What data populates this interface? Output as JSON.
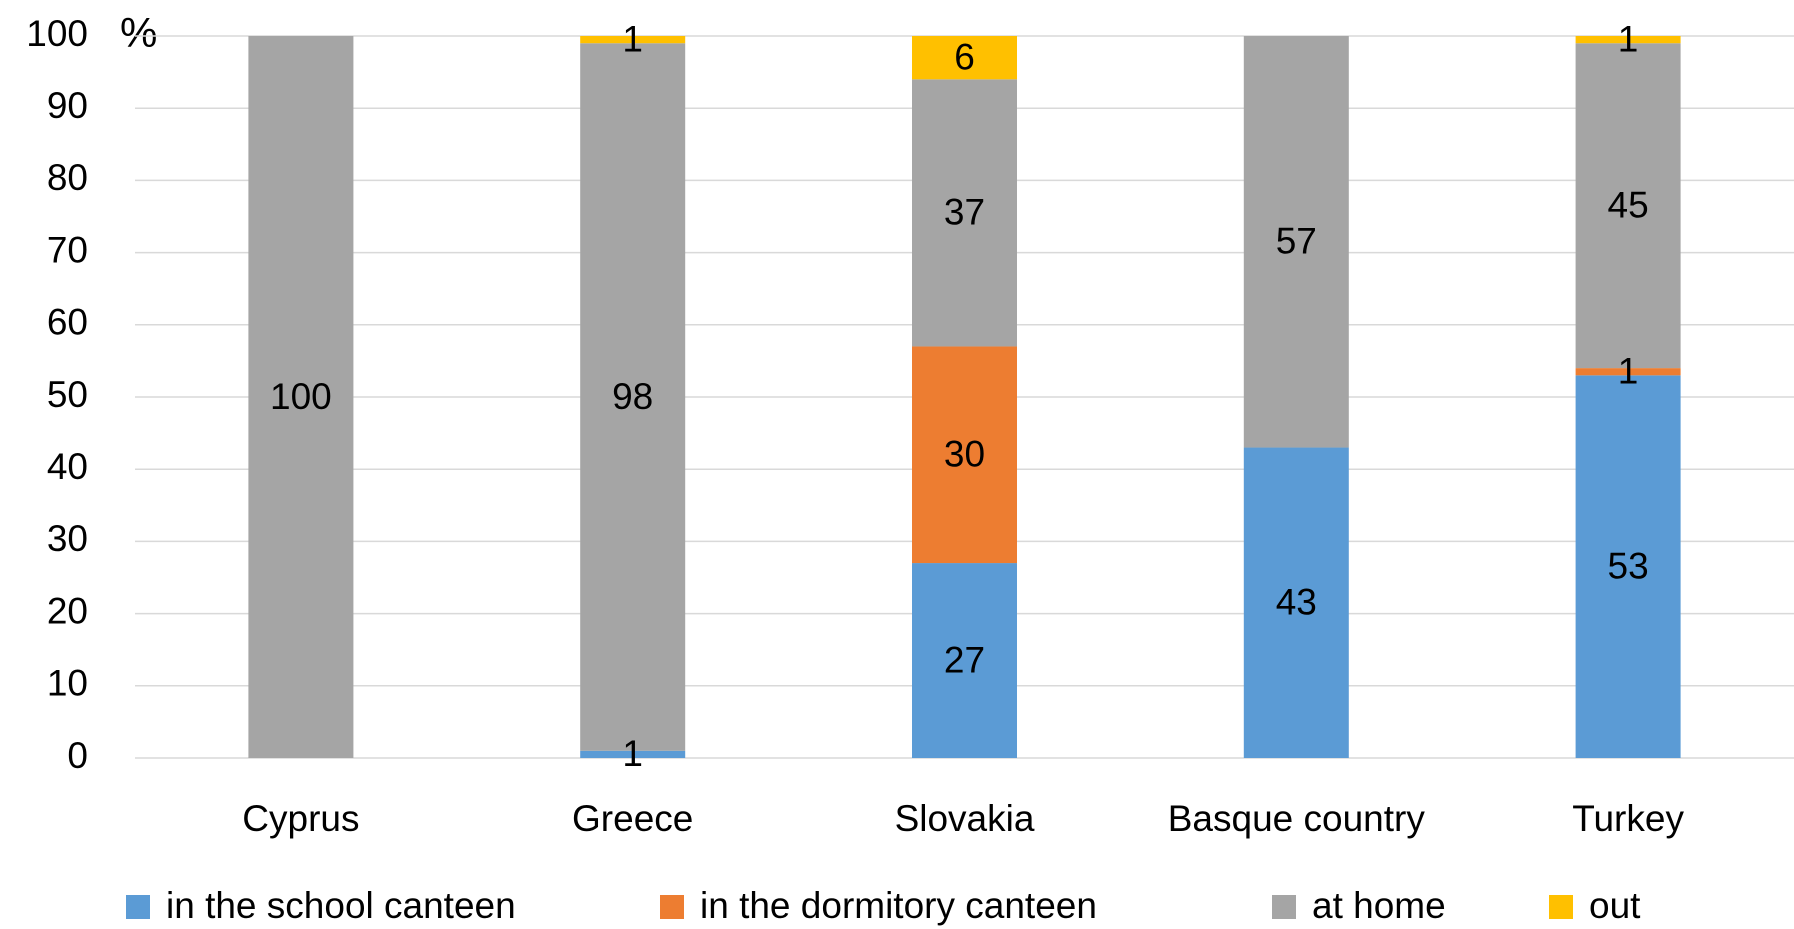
{
  "chart_data": {
    "type": "stacked_bar",
    "y_label": "%",
    "categories": [
      "Cyprus",
      "Greece",
      "Slovakia",
      "Basque country",
      "Turkey"
    ],
    "series": [
      {
        "name": "in the school canteen",
        "color": "#5b9bd5",
        "values": [
          0,
          1,
          27,
          43,
          53
        ]
      },
      {
        "name": "in the dormitory canteen",
        "color": "#ed7d31",
        "values": [
          0,
          0,
          30,
          0,
          1
        ]
      },
      {
        "name": "at home",
        "color": "#a5a5a5",
        "values": [
          100,
          98,
          37,
          57,
          45
        ]
      },
      {
        "name": "out",
        "color": "#ffc000",
        "values": [
          0,
          1,
          6,
          0,
          1
        ]
      }
    ],
    "ylim": [
      0,
      100
    ],
    "yticks": [
      0,
      10,
      20,
      30,
      40,
      50,
      60,
      70,
      80,
      90,
      100
    ],
    "grid": true,
    "legend": "bottom"
  }
}
